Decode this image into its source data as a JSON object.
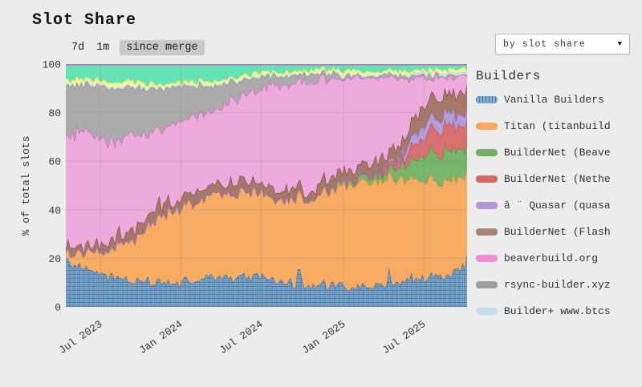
{
  "page": {
    "title": "Slot Share",
    "background": "#ececec"
  },
  "controls": {
    "range_buttons": [
      {
        "label": "7d",
        "active": false
      },
      {
        "label": "1m",
        "active": false
      },
      {
        "label": "since merge",
        "active": true
      }
    ]
  },
  "sort_dropdown": {
    "value": "by slot share",
    "arrow_glyph": "▼"
  },
  "legend": {
    "title": "Builders",
    "items": [
      {
        "label": "Vanilla Builders",
        "color": "#7fadd4",
        "hatch": true
      },
      {
        "label": "Titan (titanbuild",
        "color": "#f9a85e",
        "hatch": false
      },
      {
        "label": "BuilderNet (Beave",
        "color": "#74af62",
        "hatch": false
      },
      {
        "label": "BuilderNet (Nethe",
        "color": "#cf6b6b",
        "hatch": false
      },
      {
        "label": "â ¨ Quasar (quasa",
        "color": "#b195d6",
        "hatch": false
      },
      {
        "label": "BuilderNet (Flash",
        "color": "#a8857a",
        "hatch": false
      },
      {
        "label": "beaverbuild.org",
        "color": "#ef8fd3",
        "hatch": false
      },
      {
        "label": "rsync-builder.xyz",
        "color": "#9e9e9e",
        "hatch": false
      },
      {
        "label": "Builder+ www.btcs",
        "color": "#c5dded",
        "hatch": false
      }
    ]
  },
  "chart_data": {
    "type": "area",
    "stacked": true,
    "percent": true,
    "title": "Slot Share",
    "ylabel": "% of total slots",
    "ylim": [
      0,
      100
    ],
    "yticks": [
      0,
      20,
      40,
      60,
      80,
      100
    ],
    "xticks": [
      "Jul 2023",
      "Jan 2024",
      "Jul 2024",
      "Jan 2025",
      "Jul 2025"
    ],
    "xtick_positions": [
      0.086,
      0.286,
      0.486,
      0.692,
      0.892
    ],
    "x_start": "Apr 2023",
    "x_end": "Oct 2025",
    "sample_interval": "monthly",
    "grid": true,
    "legend_position": "right",
    "series": [
      {
        "name": "Vanilla Builders",
        "fill": "#7fadd4",
        "stroke": "#3f6f9f",
        "hatch": true,
        "jitter": 2.2,
        "spiky": true,
        "values": [
          20,
          16,
          14,
          13,
          12,
          11,
          11,
          10,
          10,
          11,
          11,
          12,
          12,
          13,
          13,
          12,
          11,
          10,
          9,
          9,
          9,
          8,
          8,
          9,
          10,
          11,
          12,
          12,
          13,
          14,
          18
        ]
      },
      {
        "name": "Titan (titanbuild",
        "fill": "#f7ab63",
        "stroke": "#e08b35",
        "hatch": false,
        "jitter": 2.2,
        "spiky": false,
        "values": [
          4,
          6,
          8,
          10,
          14,
          18,
          22,
          26,
          30,
          32,
          33,
          34,
          34,
          35,
          34,
          33,
          34,
          35,
          36,
          38,
          40,
          42,
          43,
          44,
          45,
          44,
          42,
          40,
          40,
          39,
          36
        ]
      },
      {
        "name": "BuilderNet (Beave",
        "fill": "#77b56a",
        "stroke": "#4f8f44",
        "hatch": false,
        "jitter": 1.4,
        "spiky": false,
        "values": [
          0,
          0,
          0,
          0,
          0,
          0,
          0,
          0,
          0,
          0,
          0,
          0,
          0,
          0,
          0,
          0,
          0,
          0,
          0,
          0,
          0.5,
          1,
          1.5,
          2,
          3,
          5,
          8,
          11,
          12,
          12,
          12
        ]
      },
      {
        "name": "BuilderNet (Nethe",
        "fill": "#d97070",
        "stroke": "#bb4848",
        "hatch": false,
        "jitter": 1.4,
        "spiky": false,
        "values": [
          0,
          0,
          0,
          0,
          0,
          0,
          0,
          0,
          0,
          0,
          0,
          0,
          0,
          0,
          0,
          0,
          0,
          0,
          0,
          0,
          0,
          0,
          0,
          0,
          1,
          3,
          6,
          9,
          10,
          10,
          9
        ]
      },
      {
        "name": "â ¨ Quasar (quasa",
        "fill": "#b49bd9",
        "stroke": "#9372c4",
        "hatch": false,
        "jitter": 0.8,
        "spiky": false,
        "values": [
          0,
          0,
          0,
          0,
          0,
          0,
          0,
          0,
          0,
          0,
          0,
          0,
          0,
          0,
          0,
          0,
          0,
          0,
          0,
          0,
          0,
          0,
          0,
          0.5,
          1,
          2,
          4,
          5,
          5,
          5,
          5
        ]
      },
      {
        "name": "BuilderNet (Flash",
        "fill": "#a5796a",
        "stroke": "#7a453d",
        "hatch": false,
        "jitter": 2.0,
        "spiky": true,
        "values": [
          3,
          3,
          3,
          3,
          3,
          4,
          4,
          4,
          4,
          4,
          4,
          4,
          4,
          4,
          4,
          4,
          4,
          4,
          4,
          4,
          5,
          5,
          5,
          5,
          5,
          6,
          7,
          8,
          9,
          9,
          9
        ]
      },
      {
        "name": "beaverbuild.org",
        "fill": "#edaadc",
        "stroke": "#d45fb5",
        "hatch": false,
        "jitter": 4.5,
        "spiky": false,
        "values": [
          45,
          48,
          46,
          44,
          42,
          40,
          36,
          33,
          31,
          30,
          31,
          30,
          32,
          33,
          35,
          42,
          43,
          44,
          45,
          44,
          40,
          38,
          37,
          36,
          33,
          28,
          20,
          9,
          7,
          6,
          5
        ]
      },
      {
        "name": "rsync-builder.xyz",
        "fill": "#ababab",
        "stroke": "#8a8a8a",
        "hatch": false,
        "jitter": 2.0,
        "spiky": false,
        "values": [
          20,
          19,
          20,
          22,
          22,
          20,
          18,
          17,
          15,
          14,
          12,
          10,
          8,
          6,
          5,
          4,
          4,
          3,
          3,
          2,
          2,
          1,
          1,
          1,
          1,
          1,
          1,
          1,
          1,
          1,
          1
        ]
      },
      {
        "name": "Builder+ www.btcs",
        "fill": "#cfe3f2",
        "stroke": "#a8cce5",
        "hatch": false,
        "jitter": 0.3,
        "spiky": false,
        "values": [
          0.5,
          0.5,
          0.5,
          0.5,
          0.5,
          0.5,
          0.5,
          0.5,
          0.5,
          0.5,
          0.5,
          0.5,
          0.5,
          0.5,
          0.5,
          0.5,
          0.5,
          0.5,
          0.5,
          0.5,
          0.5,
          0.5,
          0.5,
          0.5,
          0.5,
          0.5,
          1,
          1,
          1,
          1,
          1
        ]
      },
      {
        "name": "(unlabeled yellow series)",
        "fill": "#f2f2a6",
        "stroke": "#e8e836",
        "hatch": false,
        "jitter": 0.9,
        "spiky": false,
        "values": [
          2,
          2,
          2,
          2,
          2,
          2,
          2,
          1.5,
          1.5,
          1.5,
          1.5,
          1.5,
          1.5,
          1.5,
          1.5,
          1.5,
          1.5,
          1.5,
          1.5,
          1.5,
          1.5,
          1.5,
          1.5,
          1.5,
          1.5,
          1.5,
          1.5,
          1.5,
          1.5,
          1.5,
          1.5
        ]
      },
      {
        "name": "(unlabeled teal series)",
        "fill": "#66e3b2",
        "stroke": "#3ecf95",
        "hatch": false,
        "jitter": 1.3,
        "spiky": false,
        "values": [
          6,
          6,
          6,
          7,
          7,
          7,
          8,
          8,
          8,
          8,
          7,
          7,
          6,
          5,
          4,
          3,
          3,
          3,
          3,
          2,
          2,
          3,
          3,
          3,
          3,
          3,
          3,
          2.5,
          2,
          2,
          2
        ]
      }
    ],
    "top_border_color": "#c06ec0",
    "grid_color": "#8a8a96"
  }
}
